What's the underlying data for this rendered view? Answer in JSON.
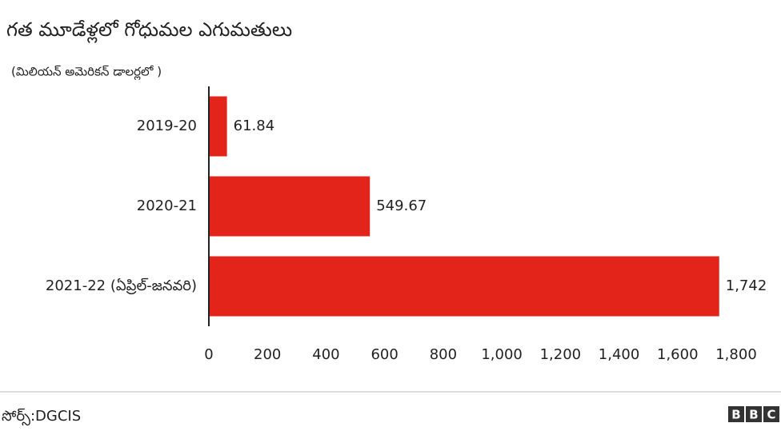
{
  "chart_data": {
    "type": "bar",
    "orientation": "horizontal",
    "title": "గత మూడేళ్లలో గోధుమల ఎగుమతులు",
    "subtitle": "(మిలియన్ అమెరికన్ డాలర్లలో )",
    "categories": [
      "2019-20",
      "2020-21",
      "2021-22 (ఏప్రిల్-జనవరి)"
    ],
    "values": [
      61.84,
      549.67,
      1742
    ],
    "value_labels": [
      "61.84",
      "549.67",
      "1,742"
    ],
    "color": "#e3241b",
    "xlim": [
      0,
      1800
    ],
    "xticks": [
      0,
      200,
      400,
      600,
      800,
      {
        "value": 1000,
        "label": "1,000"
      },
      {
        "value": 1200,
        "label": "1,200"
      },
      {
        "value": 1400,
        "label": "1,400"
      },
      {
        "value": 1600,
        "label": "1,600"
      },
      {
        "value": 1800,
        "label": "1,800"
      }
    ],
    "grid": false,
    "source": "సోర్స్:DGCIS",
    "logo": [
      "B",
      "B",
      "C"
    ]
  }
}
